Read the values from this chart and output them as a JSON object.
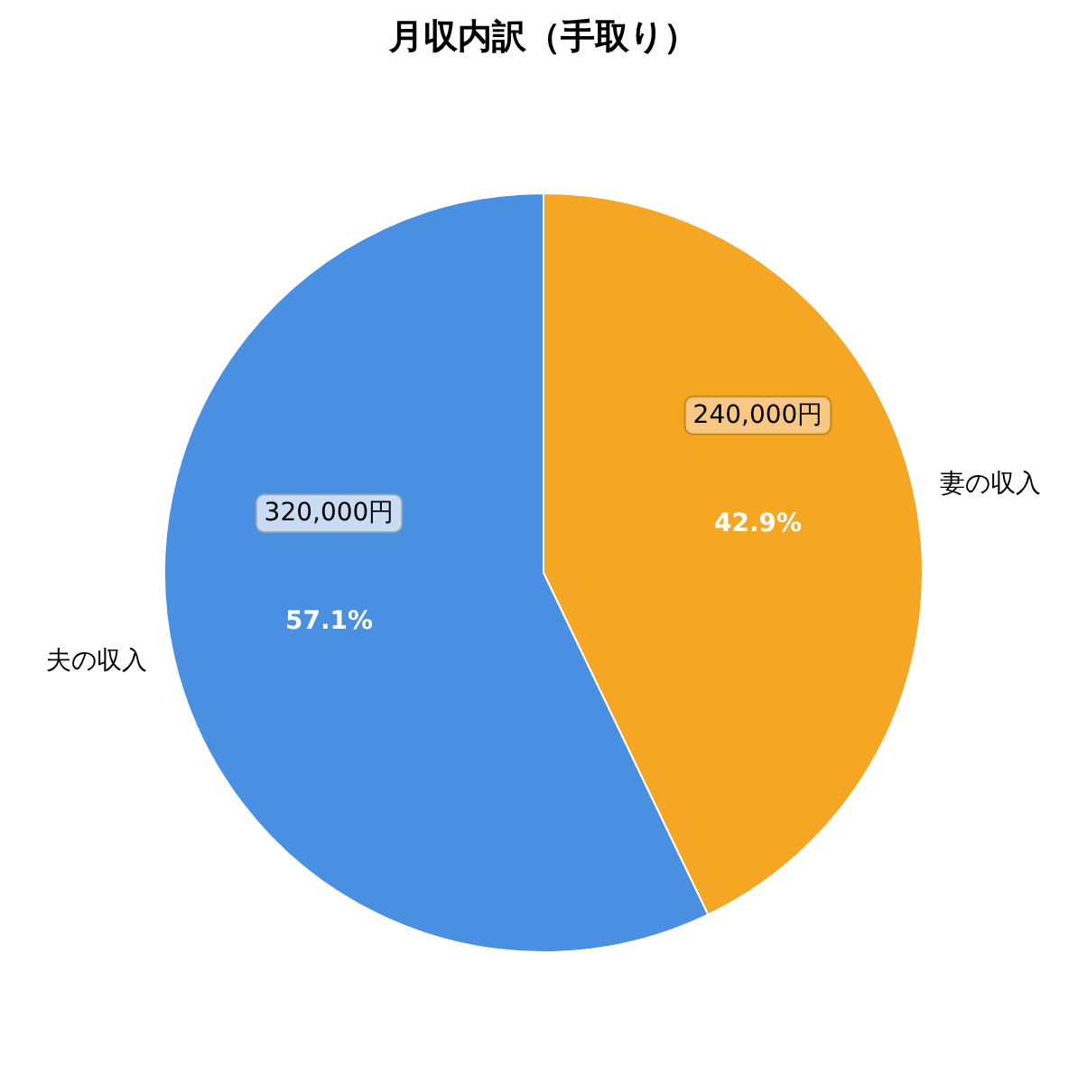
{
  "chart_data": {
    "type": "pie",
    "title": "月収内訳（手取り）",
    "categories": [
      "妻の収入",
      "夫の収入"
    ],
    "values": [
      240000,
      320000
    ],
    "colors": [
      "#f5a623",
      "#4a90e2"
    ],
    "value_labels": [
      "240,000円",
      "320,000円"
    ],
    "annotations": [
      "42.9%",
      "57.1%"
    ]
  }
}
